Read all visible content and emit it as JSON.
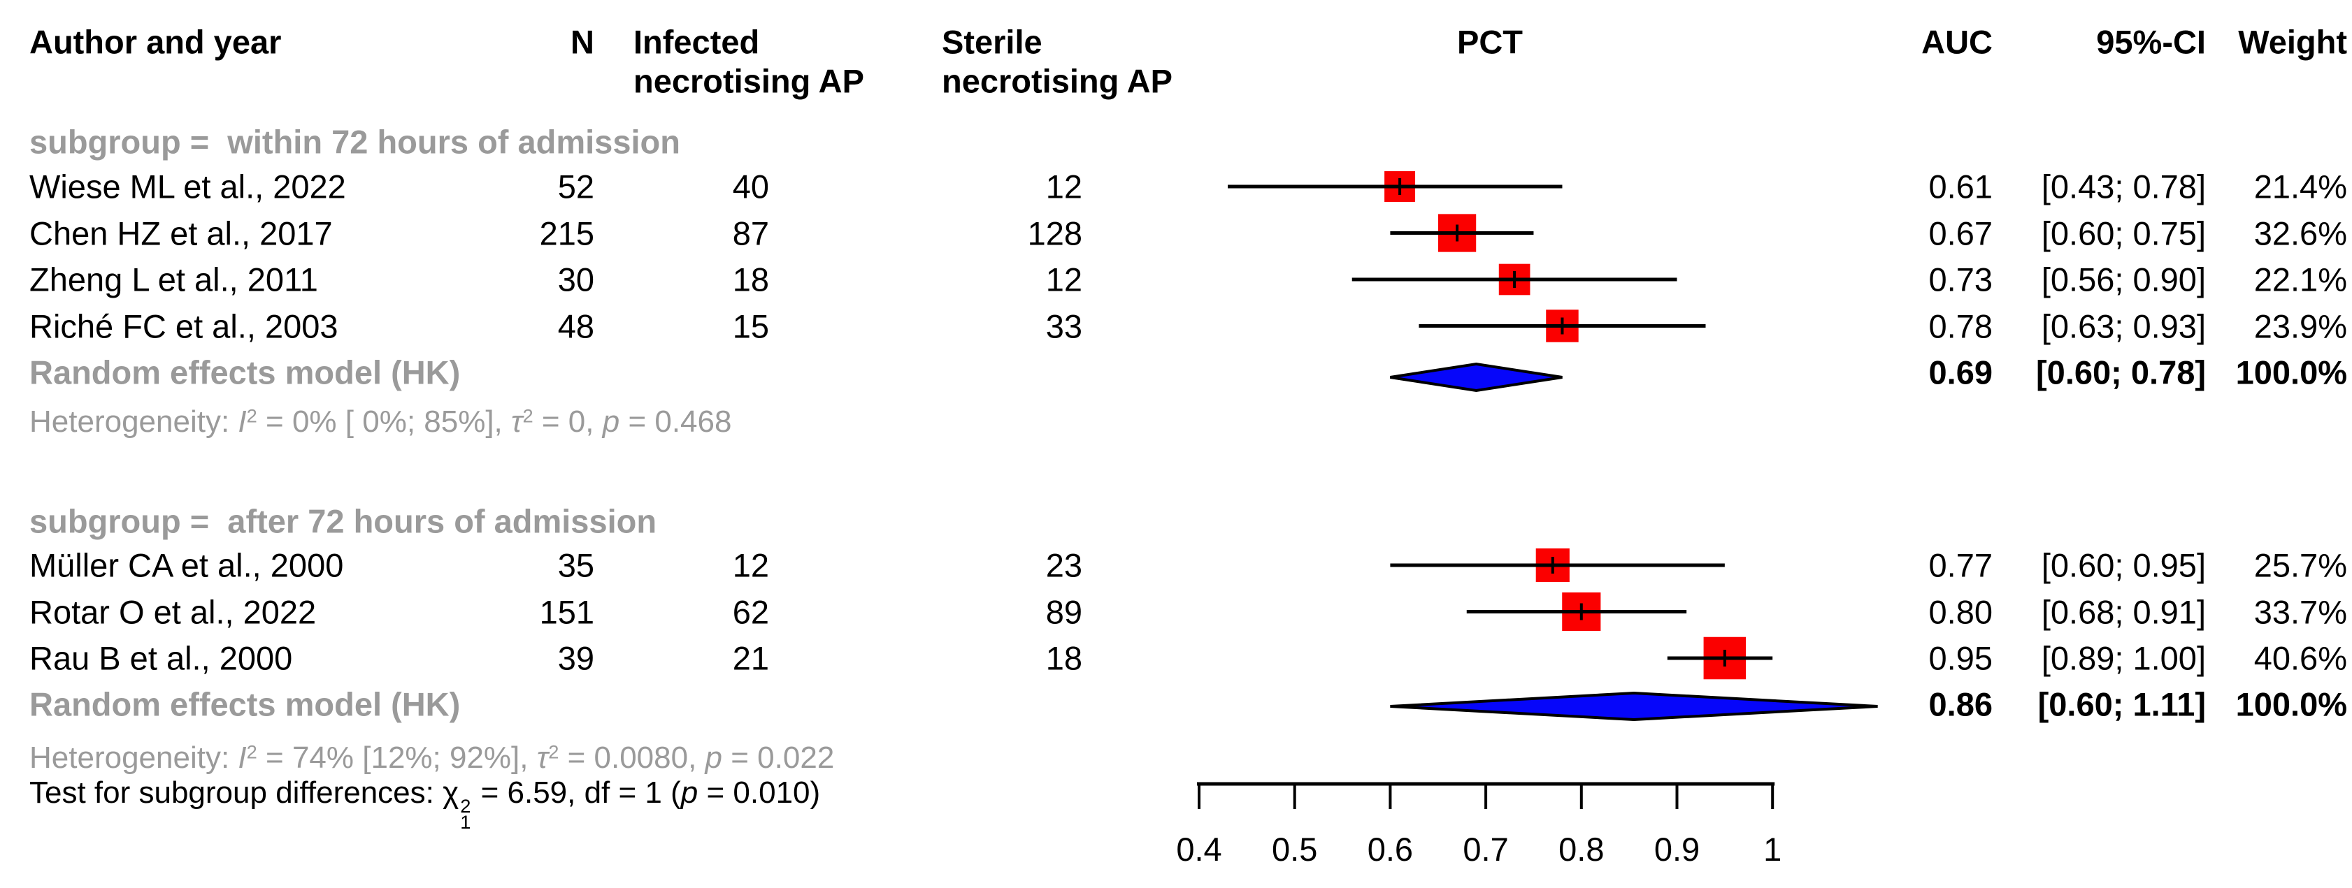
{
  "colors": {
    "square": "#fb0000",
    "diamond": "#0606fa",
    "gray_text": "#9a9a9a",
    "line": "#000000",
    "background": "#ffffff"
  },
  "chart_data": {
    "type": "forest",
    "title": "",
    "effect_measure": "AUC",
    "columns": {
      "author": "Author and year",
      "n": "N",
      "infected_line1": "Infected",
      "infected_line2": "necrotising AP",
      "sterile_line1": "Sterile",
      "sterile_line2": "necrotising AP",
      "effect_header": "PCT",
      "auc": "AUC",
      "ci": "95%-CI",
      "weight": "Weight"
    },
    "axis": {
      "xlim": [
        0.4,
        1.0
      ],
      "position": "bottom",
      "ticks": [
        {
          "v": 0.4,
          "label": "0.4"
        },
        {
          "v": 0.5,
          "label": "0.5"
        },
        {
          "v": 0.6,
          "label": "0.6"
        },
        {
          "v": 0.7,
          "label": "0.7"
        },
        {
          "v": 0.8,
          "label": "0.8"
        },
        {
          "v": 0.9,
          "label": "0.9"
        },
        {
          "v": 1.0,
          "label": "1"
        }
      ]
    },
    "subgroups": [
      {
        "label": "subgroup =  within 72 hours of admission",
        "studies": [
          {
            "author": "Wiese ML et al., 2022",
            "n": "52",
            "infected": "40",
            "sterile": "12",
            "auc": 0.61,
            "auc_text": "0.61",
            "ci_low": 0.43,
            "ci_high": 0.78,
            "ci_text": "[0.43; 0.78]",
            "weight": 21.4,
            "weight_text": "21.4%"
          },
          {
            "author": "Chen HZ et al., 2017",
            "n": "215",
            "infected": "87",
            "sterile": "128",
            "auc": 0.67,
            "auc_text": "0.67",
            "ci_low": 0.6,
            "ci_high": 0.75,
            "ci_text": "[0.60; 0.75]",
            "weight": 32.6,
            "weight_text": "32.6%"
          },
          {
            "author": "Zheng L et al., 2011",
            "n": "30",
            "infected": "18",
            "sterile": "12",
            "auc": 0.73,
            "auc_text": "0.73",
            "ci_low": 0.56,
            "ci_high": 0.9,
            "ci_text": "[0.56; 0.90]",
            "weight": 22.1,
            "weight_text": "22.1%"
          },
          {
            "author": "Riché FC et al., 2003",
            "n": "48",
            "infected": "15",
            "sterile": "33",
            "auc": 0.78,
            "auc_text": "0.78",
            "ci_low": 0.63,
            "ci_high": 0.93,
            "ci_text": "[0.63; 0.93]",
            "weight": 23.9,
            "weight_text": "23.9%"
          }
        ],
        "pooled": {
          "label": "Random effects model (HK)",
          "auc": 0.69,
          "auc_text": "0.69",
          "ci_low": 0.6,
          "ci_high": 0.78,
          "ci_text": "[0.60; 0.78]",
          "weight_text": "100.0%"
        },
        "heterogeneity": [
          {
            "t": "Heterogeneity: "
          },
          {
            "t": "I",
            "italic": true
          },
          {
            "t": "2",
            "sup": true
          },
          {
            "t": " = 0% [ 0%; 85%], "
          },
          {
            "t": "τ",
            "italic": true
          },
          {
            "t": "2",
            "sup": true
          },
          {
            "t": " = 0, "
          },
          {
            "t": "p",
            "italic": true
          },
          {
            "t": " = 0.468"
          }
        ]
      },
      {
        "label": "subgroup =  after 72 hours of admission",
        "studies": [
          {
            "author": "Müller CA et al., 2000",
            "n": "35",
            "infected": "12",
            "sterile": "23",
            "auc": 0.77,
            "auc_text": "0.77",
            "ci_low": 0.6,
            "ci_high": 0.95,
            "ci_text": "[0.60; 0.95]",
            "weight": 25.7,
            "weight_text": "25.7%"
          },
          {
            "author": "Rotar O et al., 2022",
            "n": "151",
            "infected": "62",
            "sterile": "89",
            "auc": 0.8,
            "auc_text": "0.80",
            "ci_low": 0.68,
            "ci_high": 0.91,
            "ci_text": "[0.68; 0.91]",
            "weight": 33.7,
            "weight_text": "33.7%"
          },
          {
            "author": "Rau B et al., 2000",
            "n": "39",
            "infected": "21",
            "sterile": "18",
            "auc": 0.95,
            "auc_text": "0.95",
            "ci_low": 0.89,
            "ci_high": 1.0,
            "ci_text": "[0.89; 1.00]",
            "weight": 40.6,
            "weight_text": "40.6%"
          }
        ],
        "pooled": {
          "label": "Random effects model (HK)",
          "auc": 0.86,
          "auc_text": "0.86",
          "ci_low": 0.6,
          "ci_high": 1.11,
          "ci_text": "[0.60; 1.11]",
          "weight_text": "100.0%"
        },
        "heterogeneity": [
          {
            "t": "Heterogeneity: "
          },
          {
            "t": "I",
            "italic": true
          },
          {
            "t": "2",
            "sup": true
          },
          {
            "t": " = 74% [12%; 92%], "
          },
          {
            "t": "τ",
            "italic": true
          },
          {
            "t": "2",
            "sup": true
          },
          {
            "t": " = 0.0080, "
          },
          {
            "t": "p",
            "italic": true
          },
          {
            "t": " = 0.022"
          }
        ]
      }
    ],
    "test_for_subgroup_differences": [
      {
        "t": "Test for subgroup differences: "
      },
      {
        "t": "χ"
      },
      {
        "stack": true,
        "sup": "2",
        "sub": "1"
      },
      {
        "t": " = 6.59, df = 1 ("
      },
      {
        "t": "p",
        "italic": true
      },
      {
        "t": " = 0.010)"
      }
    ]
  }
}
